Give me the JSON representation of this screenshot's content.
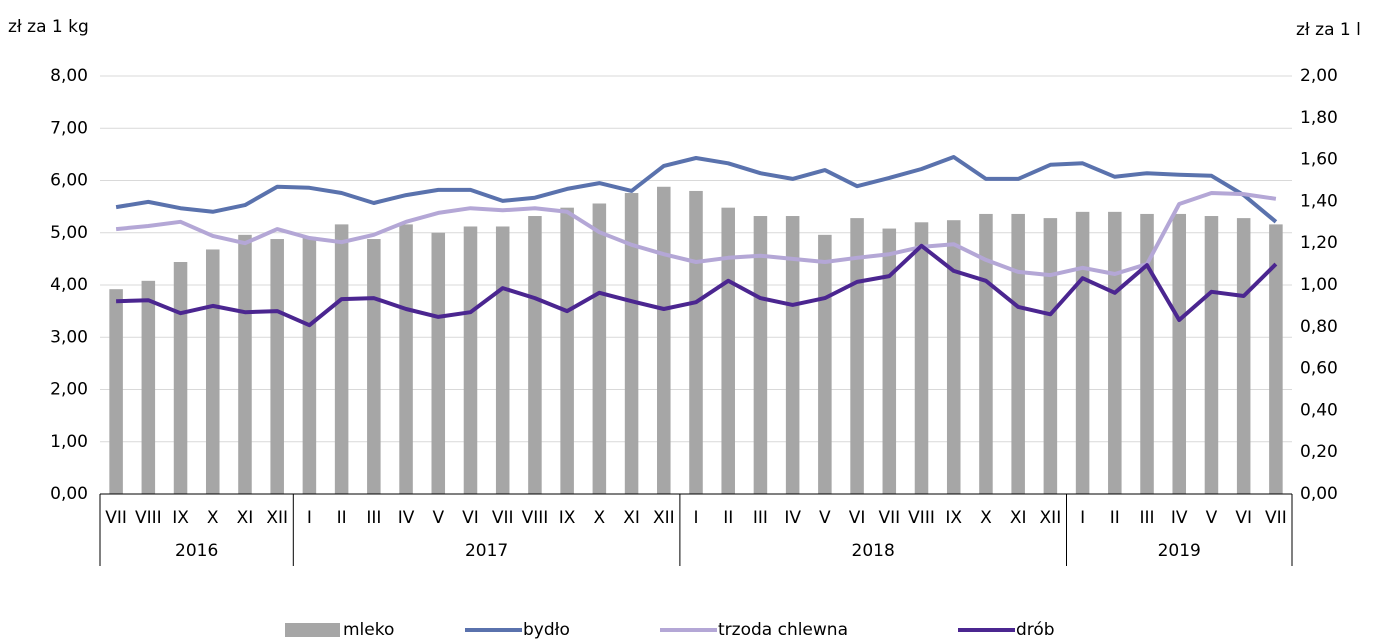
{
  "chart_data": {
    "type": "bar",
    "y_label": "zł za 1 kg",
    "y2_label": "zł za 1 l",
    "category_groups": [
      {
        "label": "2016",
        "categories": [
          "VII",
          "VIII",
          "IX",
          "X",
          "XI",
          "XII"
        ]
      },
      {
        "label": "2017",
        "categories": [
          "I",
          "II",
          "III",
          "IV",
          "V",
          "VI",
          "VII",
          "VIII",
          "IX",
          "X",
          "XI",
          "XII"
        ]
      },
      {
        "label": "2018",
        "categories": [
          "I",
          "II",
          "III",
          "IV",
          "V",
          "VI",
          "VII",
          "VIII",
          "IX",
          "X",
          "XI",
          "XII"
        ]
      },
      {
        "label": "2019",
        "categories": [
          "I",
          "II",
          "III",
          "IV",
          "V",
          "VI",
          "VII"
        ]
      }
    ],
    "series": [
      {
        "name": "mleko",
        "type": "bar",
        "axis": "y2",
        "color": "#a6a6a6",
        "values": [
          0.98,
          1.02,
          1.11,
          1.17,
          1.24,
          1.22,
          1.23,
          1.29,
          1.22,
          1.29,
          1.25,
          1.28,
          1.28,
          1.33,
          1.37,
          1.39,
          1.44,
          1.47,
          1.45,
          1.37,
          1.33,
          1.33,
          1.24,
          1.32,
          1.27,
          1.3,
          1.31,
          1.34,
          1.34,
          1.32,
          1.35,
          1.35,
          1.34,
          1.34,
          1.33,
          1.32,
          1.29
        ]
      },
      {
        "name": "bydło",
        "type": "line",
        "color": "#5a72ad",
        "values": [
          5.49,
          5.59,
          5.47,
          5.4,
          5.53,
          5.88,
          5.86,
          5.76,
          5.57,
          5.72,
          5.82,
          5.82,
          5.61,
          5.67,
          5.84,
          5.95,
          5.8,
          6.28,
          6.43,
          6.33,
          6.14,
          6.03,
          6.2,
          5.89,
          6.05,
          6.22,
          6.45,
          6.03,
          6.03,
          6.3,
          6.33,
          6.07,
          6.14,
          6.11,
          6.09,
          5.72,
          5.21
        ]
      },
      {
        "name": "trzoda chlewna",
        "type": "line",
        "color": "#b4a7d6",
        "values": [
          5.07,
          5.13,
          5.21,
          4.94,
          4.8,
          5.07,
          4.9,
          4.82,
          4.96,
          5.21,
          5.38,
          5.47,
          5.43,
          5.47,
          5.4,
          5.01,
          4.77,
          4.59,
          4.44,
          4.52,
          4.56,
          4.5,
          4.44,
          4.52,
          4.59,
          4.73,
          4.78,
          4.48,
          4.25,
          4.19,
          4.33,
          4.21,
          4.4,
          5.55,
          5.76,
          5.74,
          5.65
        ]
      },
      {
        "name": "drób",
        "type": "line",
        "color": "#4b2690",
        "values": [
          3.69,
          3.71,
          3.46,
          3.6,
          3.48,
          3.5,
          3.23,
          3.73,
          3.75,
          3.54,
          3.39,
          3.48,
          3.94,
          3.75,
          3.5,
          3.85,
          3.69,
          3.54,
          3.67,
          4.08,
          3.75,
          3.62,
          3.75,
          4.06,
          4.17,
          4.75,
          4.27,
          4.08,
          3.58,
          3.44,
          4.13,
          3.85,
          4.38,
          3.33,
          3.87,
          3.79,
          4.4
        ]
      }
    ],
    "ylim": [
      0,
      8
    ],
    "yticks": [
      {
        "value": 0,
        "label": "0,00"
      },
      {
        "value": 1,
        "label": "1,00"
      },
      {
        "value": 2,
        "label": "2,00"
      },
      {
        "value": 3,
        "label": "3,00"
      },
      {
        "value": 4,
        "label": "4,00"
      },
      {
        "value": 5,
        "label": "5,00"
      },
      {
        "value": 6,
        "label": "6,00"
      },
      {
        "value": 7,
        "label": "7,00"
      },
      {
        "value": 8,
        "label": "8,00"
      }
    ],
    "y2lim": [
      0,
      2
    ],
    "y2ticks": [
      {
        "value": 0,
        "label": "0,00"
      },
      {
        "value": 0.2,
        "label": "0,20"
      },
      {
        "value": 0.4,
        "label": "0,40"
      },
      {
        "value": 0.6,
        "label": "0,60"
      },
      {
        "value": 0.8,
        "label": "0,80"
      },
      {
        "value": 1,
        "label": "1,00"
      },
      {
        "value": 1.2,
        "label": "1,20"
      },
      {
        "value": 1.4,
        "label": "1,40"
      },
      {
        "value": 1.6,
        "label": "1,60"
      },
      {
        "value": 1.8,
        "label": "1,80"
      },
      {
        "value": 2,
        "label": "2,00"
      }
    ],
    "grid": true,
    "legend": "bottom"
  }
}
